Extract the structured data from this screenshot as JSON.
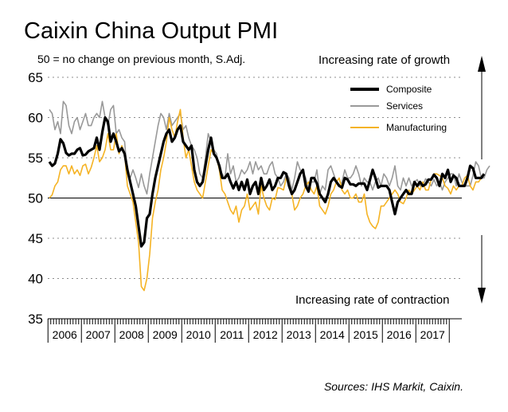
{
  "header": {
    "title": "Caixin China Output PMI",
    "subtitle": "50 = no change on previous month, S.Adj."
  },
  "footer": {
    "source": "Sources: IHS Markit, Caixin."
  },
  "colors": {
    "composite": "#000000",
    "services": "#999999",
    "manufacturing": "#f5b324",
    "grid": "#8c8c8c",
    "baseline": "#000000"
  },
  "chart_data": {
    "type": "line",
    "title": "Caixin China Output PMI",
    "subtitle": "50 = no change on previous month, S.Adj.",
    "xlabel": "",
    "ylabel": "",
    "ylim": [
      35,
      65
    ],
    "yticks": [
      35,
      40,
      45,
      50,
      55,
      60,
      65
    ],
    "years": [
      "2006",
      "2007",
      "2008",
      "2009",
      "2010",
      "2011",
      "2012",
      "2013",
      "2014",
      "2015",
      "2016",
      "2017"
    ],
    "x_start": "Jan 2006",
    "frequency": "monthly",
    "grid": "horizontal dotted",
    "reference_line": 50,
    "legend_position": "top-right",
    "annotations": {
      "top": "Increasing rate of growth",
      "bottom": "Increasing rate of contraction"
    },
    "series": [
      {
        "name": "Composite",
        "values": [
          54.5,
          54.0,
          54.3,
          55.5,
          57.3,
          56.8,
          55.6,
          55.3,
          55.5,
          55.5,
          56.0,
          56.2,
          55.3,
          55.4,
          55.8,
          56.0,
          56.2,
          57.5,
          56.0,
          58.2,
          60.0,
          59.5,
          57.0,
          58.0,
          57.0,
          55.8,
          56.2,
          55.5,
          53.5,
          52.0,
          50.5,
          49.0,
          46.5,
          44.0,
          44.5,
          47.5,
          48.0,
          50.5,
          52.5,
          54.0,
          55.5,
          57.0,
          58.0,
          58.5,
          57.0,
          57.5,
          58.5,
          59.0,
          57.0,
          56.5,
          56.0,
          56.5,
          53.5,
          52.0,
          51.5,
          52.0,
          54.0,
          56.0,
          57.5,
          55.5,
          55.0,
          54.0,
          52.5,
          52.5,
          53.0,
          52.0,
          51.2,
          52.0,
          51.0,
          52.0,
          51.0,
          52.3,
          50.5,
          51.5,
          52.0,
          50.5,
          52.5,
          51.0,
          51.5,
          52.3,
          51.0,
          51.5,
          52.5,
          52.5,
          53.2,
          53.0,
          51.5,
          50.5,
          51.0,
          52.0,
          53.0,
          53.5,
          51.5,
          50.8,
          52.5,
          52.5,
          51.8,
          50.5,
          50.0,
          49.5,
          50.5,
          52.0,
          52.5,
          52.0,
          51.5,
          51.3,
          52.5,
          52.3,
          51.7,
          51.7,
          51.5,
          51.8,
          51.8,
          51.8,
          51.0,
          52.2,
          53.5,
          52.5,
          51.3,
          51.5,
          51.5,
          51.5,
          51.0,
          49.5,
          48.0,
          49.5,
          50.0,
          50.5,
          51.0,
          50.5,
          50.5,
          52.0,
          51.5,
          52.0,
          51.5,
          51.7,
          52.3,
          52.3,
          52.9,
          52.5,
          51.5,
          53.0,
          52.5,
          53.5,
          52.0,
          52.8,
          52.5,
          51.5,
          51.5,
          51.5,
          52.5,
          54.0,
          53.7,
          52.5,
          52.5,
          52.5,
          53.0
        ]
      },
      {
        "name": "Services",
        "values": [
          61.0,
          60.5,
          58.5,
          59.5,
          58.0,
          62.0,
          61.5,
          59.0,
          58.0,
          59.5,
          60.0,
          58.5,
          59.5,
          60.5,
          59.0,
          59.0,
          60.0,
          60.5,
          60.0,
          62.0,
          60.0,
          59.0,
          61.0,
          61.5,
          58.0,
          58.5,
          57.5,
          57.0,
          53.0,
          52.5,
          53.5,
          52.5,
          51.3,
          53.0,
          51.5,
          50.5,
          53.0,
          55.0,
          57.0,
          59.0,
          60.5,
          60.0,
          58.5,
          60.5,
          59.0,
          59.5,
          60.0,
          60.5,
          58.5,
          59.0,
          57.5,
          56.5,
          56.0,
          55.0,
          53.0,
          52.5,
          55.0,
          58.0,
          57.0,
          56.0,
          55.5,
          53.5,
          53.0,
          52.5,
          55.5,
          53.0,
          54.0,
          52.0,
          52.5,
          53.5,
          53.0,
          53.5,
          54.5,
          53.0,
          54.5,
          53.5,
          54.0,
          53.0,
          53.0,
          54.0,
          54.5,
          53.0,
          52.5,
          51.5,
          52.0,
          53.0,
          52.5,
          51.0,
          52.5,
          54.5,
          53.5,
          53.2,
          52.5,
          51.0,
          52.0,
          52.0,
          53.5,
          50.5,
          51.5,
          51.0,
          53.5,
          54.0,
          53.0,
          52.0,
          51.5,
          52.0,
          53.5,
          52.5,
          52.5,
          53.0,
          54.0,
          53.0,
          51.5,
          52.5,
          52.0,
          52.0,
          51.0,
          52.0,
          52.5,
          51.5,
          53.0,
          52.5,
          51.5,
          52.5,
          54.0,
          51.5,
          51.0,
          52.5,
          51.5,
          52.5,
          51.5,
          52.0,
          52.3,
          51.5,
          51.5,
          52.4,
          52.0,
          51.5,
          52.3,
          51.5,
          52.0,
          51.0,
          52.0,
          52.5,
          53.0,
          53.0,
          51.5,
          53.0,
          52.0,
          51.5,
          51.5,
          51.5,
          52.8,
          54.5,
          54.0,
          52.5,
          52.5,
          53.5,
          54.0
        ]
      },
      {
        "name": "Manufacturing",
        "values": [
          50.0,
          50.4,
          51.5,
          52.0,
          53.5,
          54.0,
          54.0,
          53.0,
          54.0,
          53.0,
          53.5,
          52.8,
          54.0,
          54.2,
          53.0,
          53.8,
          55.0,
          56.5,
          54.5,
          55.0,
          56.0,
          58.0,
          56.0,
          56.0,
          58.0,
          55.5,
          56.5,
          55.5,
          51.5,
          50.5,
          49.5,
          47.0,
          44.5,
          39.0,
          38.5,
          40.0,
          43.0,
          47.5,
          49.5,
          51.0,
          53.5,
          55.0,
          57.0,
          60.0,
          58.5,
          57.5,
          59.5,
          61.0,
          57.5,
          55.0,
          56.0,
          54.0,
          52.0,
          51.0,
          50.5,
          50.0,
          52.0,
          54.0,
          56.0,
          55.5,
          55.0,
          53.5,
          51.0,
          50.5,
          49.5,
          48.5,
          48.0,
          49.0,
          47.0,
          48.5,
          49.0,
          50.5,
          48.5,
          49.0,
          49.5,
          48.0,
          51.5,
          50.0,
          49.0,
          48.5,
          50.0,
          49.8,
          51.3,
          51.2,
          51.0,
          52.5,
          51.8,
          50.5,
          48.5,
          49.0,
          50.0,
          50.5,
          51.5,
          52.0,
          51.0,
          50.5,
          51.5,
          49.0,
          48.5,
          48.0,
          49.0,
          50.5,
          51.0,
          52.0,
          52.5,
          51.0,
          50.5,
          51.0,
          50.0,
          50.0,
          50.5,
          49.5,
          49.5,
          50.5,
          48.0,
          47.0,
          46.5,
          46.2,
          47.0,
          49.0,
          49.0,
          49.5,
          50.0,
          50.5,
          51.0,
          50.5,
          49.5,
          49.3,
          50.0,
          51.0,
          50.5,
          51.0,
          51.5,
          51.0,
          52.0,
          51.0,
          51.0,
          52.3,
          53.0,
          53.0,
          52.8,
          52.5,
          51.5,
          51.2,
          50.5,
          51.5,
          51.0,
          51.5,
          51.5,
          52.5,
          52.8,
          51.5,
          51.0,
          52.0,
          52.0,
          52.5
        ]
      }
    ]
  }
}
